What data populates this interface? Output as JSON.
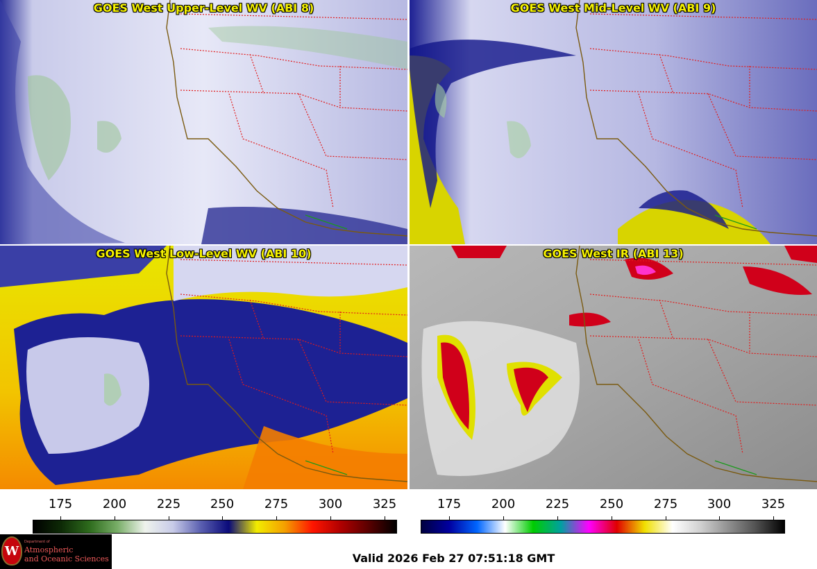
{
  "panels": [
    {
      "title": "GOES West Upper-Level WV (ABI 8)",
      "scheme": "wv8"
    },
    {
      "title": "GOES West Mid-Level WV (ABI 9)",
      "scheme": "wv9"
    },
    {
      "title": "GOES West Low-Level WV (ABI 10)",
      "scheme": "wv10"
    },
    {
      "title": "GOES West IR (ABI 13)",
      "scheme": "ir"
    }
  ],
  "colorbars": {
    "wv": {
      "ticks": [
        "175",
        "200",
        "225",
        "250",
        "275",
        "300",
        "325"
      ],
      "colors": [
        "#000000",
        "#0d2a06",
        "#2d6b1c",
        "#77ad66",
        "#eef3ec",
        "#c8cbe8",
        "#5a5fb0",
        "#0a0a7a",
        "#f2ec00",
        "#f4a000",
        "#ff1500",
        "#b00000",
        "#5a0000",
        "#000000"
      ]
    },
    "ir": {
      "ticks": [
        "175",
        "200",
        "225",
        "250",
        "275",
        "300",
        "325"
      ],
      "colors": [
        "#000040",
        "#0000a0",
        "#0066ff",
        "#ffffff",
        "#00cc00",
        "#00a0a0",
        "#ff00ff",
        "#e00000",
        "#f0e000",
        "#ffffff",
        "#d0d0d0",
        "#909090",
        "#505050",
        "#000000"
      ]
    }
  },
  "logo": {
    "seal_letter": "W",
    "dept": "Department of",
    "line1": "Atmospheric",
    "line2": "and Oceanic Sciences"
  },
  "valid_time": "Valid 2026 Feb 27 07:51:18 GMT"
}
